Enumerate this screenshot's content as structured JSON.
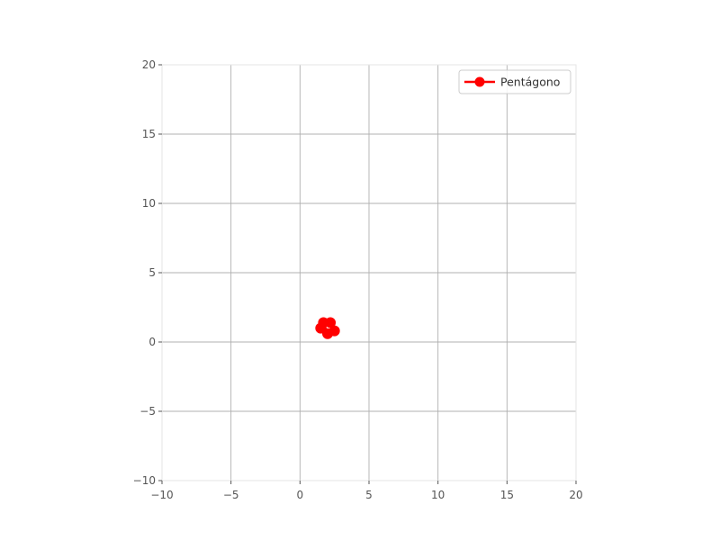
{
  "chart_data": {
    "type": "line",
    "title": "",
    "xlabel": "",
    "ylabel": "",
    "xlim": [
      -10,
      20
    ],
    "ylim": [
      -10,
      20
    ],
    "xticks": [
      -10,
      -5,
      0,
      5,
      10,
      15,
      20
    ],
    "yticks": [
      -10,
      -5,
      0,
      5,
      10,
      15,
      20
    ],
    "xtick_labels": [
      "−10",
      "−5",
      "0",
      "5",
      "10",
      "15",
      "20"
    ],
    "ytick_labels": [
      "−10",
      "−5",
      "0",
      "5",
      "10",
      "15",
      "20"
    ],
    "grid": true,
    "legend_position": "top-right",
    "series": [
      {
        "name": "Pentágono",
        "color": "#ff0000",
        "marker": "circle",
        "closed": true,
        "x": [
          2.5,
          2.2,
          1.5,
          1.7,
          2.0
        ],
        "y": [
          0.8,
          1.4,
          1.0,
          1.4,
          0.6
        ]
      }
    ]
  }
}
